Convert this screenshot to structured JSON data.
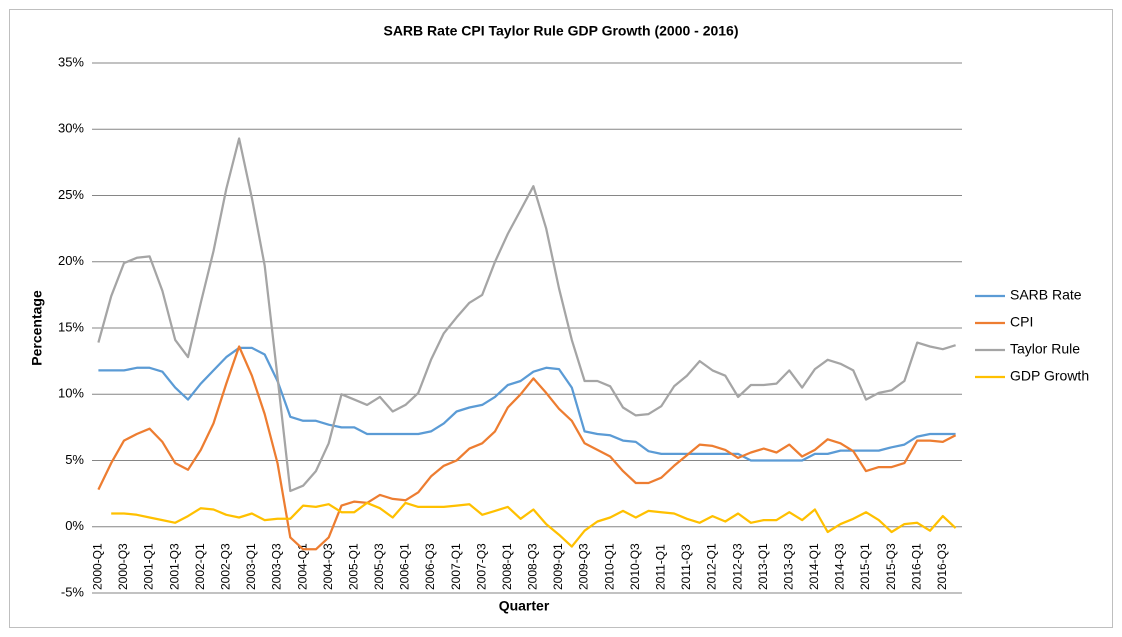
{
  "chart_data": {
    "type": "line",
    "title": "SARB Rate CPI Taylor Rule GDP Growth (2000 - 2016)",
    "x_label": "Quarter",
    "y_label": "Percentage",
    "categories": [
      "2000-Q1",
      null,
      "2000-Q3",
      null,
      "2001-Q1",
      null,
      "2001-Q3",
      null,
      "2002-Q1",
      null,
      "2002-Q3",
      null,
      "2003-Q1",
      null,
      "2003-Q3",
      null,
      "2004-Q1",
      null,
      "2004-Q3",
      null,
      "2005-Q1",
      null,
      "2005-Q3",
      null,
      "2006-Q1",
      null,
      "2006-Q3",
      null,
      "2007-Q1",
      null,
      "2007-Q3",
      null,
      "2008-Q1",
      null,
      "2008-Q3",
      null,
      "2009-Q1",
      null,
      "2009-Q3",
      null,
      "2010-Q1",
      null,
      "2010-Q3",
      null,
      "2011-Q1",
      null,
      "2011-Q3",
      null,
      "2012-Q1",
      null,
      "2012-Q3",
      null,
      "2013-Q1",
      null,
      "2013-Q3",
      null,
      "2014-Q1",
      null,
      "2014-Q3",
      null,
      "2015-Q1",
      null,
      "2015-Q3",
      null,
      "2016-Q1",
      null,
      "2016-Q3",
      null
    ],
    "series": [
      {
        "name": "SARB Rate",
        "color": "#5b9bd5",
        "values": [
          11.8,
          11.8,
          11.8,
          12,
          12,
          11.7,
          10.5,
          9.6,
          10.8,
          11.8,
          12.8,
          13.5,
          13.5,
          13,
          11,
          8.3,
          8,
          8,
          7.7,
          7.5,
          7.5,
          7,
          7,
          7,
          7,
          7,
          7.2,
          7.8,
          8.7,
          9,
          9.2,
          9.8,
          10.7,
          11,
          11.7,
          12,
          11.9,
          10.5,
          7.2,
          7,
          6.9,
          6.5,
          6.4,
          5.7,
          5.5,
          5.5,
          5.5,
          5.5,
          5.5,
          5.5,
          5.5,
          5,
          5,
          5,
          5,
          5,
          5.5,
          5.5,
          5.75,
          5.75,
          5.75,
          5.75,
          6,
          6.2,
          6.8,
          7,
          7,
          7
        ]
      },
      {
        "name": "CPI",
        "color": "#ed7d31",
        "values": [
          2.8,
          4.8,
          6.5,
          7,
          7.4,
          6.4,
          4.8,
          4.3,
          5.8,
          7.8,
          10.8,
          13.6,
          11.4,
          8.5,
          4.8,
          -0.8,
          -1.7,
          -1.7,
          -0.8,
          1.6,
          1.9,
          1.8,
          2.4,
          2.1,
          2,
          2.6,
          3.8,
          4.6,
          5,
          5.9,
          6.3,
          7.2,
          9,
          10,
          11.2,
          10.1,
          8.9,
          8,
          6.3,
          5.8,
          5.3,
          4.2,
          3.3,
          3.3,
          3.7,
          4.6,
          5.4,
          6.2,
          6.1,
          5.8,
          5.2,
          5.6,
          5.9,
          5.6,
          6.2,
          5.3,
          5.8,
          6.6,
          6.3,
          5.7,
          4.2,
          4.5,
          4.5,
          4.8,
          6.5,
          6.5,
          6.4,
          6.9
        ]
      },
      {
        "name": "Taylor Rule",
        "color": "#a5a5a5",
        "values": [
          13.9,
          17.4,
          19.9,
          20.3,
          20.4,
          17.8,
          14.1,
          12.8,
          16.9,
          20.8,
          25.5,
          29.3,
          24.8,
          19.7,
          11.3,
          2.7,
          3.1,
          4.2,
          6.3,
          10,
          9.6,
          9.2,
          9.8,
          8.7,
          9.2,
          10.1,
          12.6,
          14.6,
          15.8,
          16.9,
          17.5,
          20,
          22.1,
          23.9,
          25.7,
          22.5,
          18,
          14.1,
          11,
          11,
          10.6,
          9,
          8.4,
          8.5,
          9.1,
          10.6,
          11.4,
          12.5,
          11.8,
          11.4,
          9.8,
          10.7,
          10.7,
          10.8,
          11.8,
          10.5,
          11.9,
          12.6,
          12.3,
          11.8,
          9.6,
          10.1,
          10.3,
          11,
          13.9,
          13.6,
          13.4,
          13.7
        ]
      },
      {
        "name": "GDP Growth",
        "color": "#ffc000",
        "values": [
          null,
          1,
          1,
          0.9,
          0.7,
          0.5,
          0.3,
          0.8,
          1.4,
          1.3,
          0.9,
          0.7,
          1,
          0.5,
          0.6,
          0.6,
          1.6,
          1.5,
          1.7,
          1.1,
          1.1,
          1.8,
          1.4,
          0.7,
          1.8,
          1.5,
          1.5,
          1.5,
          1.6,
          1.7,
          0.9,
          1.2,
          1.5,
          0.6,
          1.3,
          0.2,
          -0.6,
          -1.5,
          -0.3,
          0.4,
          0.7,
          1.2,
          0.7,
          1.2,
          1.1,
          1,
          0.6,
          0.3,
          0.8,
          0.4,
          1,
          0.3,
          0.5,
          0.5,
          1.1,
          0.5,
          1.3,
          -0.4,
          0.2,
          0.6,
          1.1,
          0.5,
          -0.4,
          0.2,
          0.3,
          -0.3,
          0.8,
          -0.1
        ]
      }
    ],
    "ylim": [
      -5,
      35
    ],
    "yticks": [
      {
        "value": -5,
        "label": "-5%"
      },
      {
        "value": 0,
        "label": "0%"
      },
      {
        "value": 5,
        "label": "5%"
      },
      {
        "value": 10,
        "label": "10%"
      },
      {
        "value": 15,
        "label": "15%"
      },
      {
        "value": 20,
        "label": "20%"
      },
      {
        "value": 25,
        "label": "25%"
      },
      {
        "value": 30,
        "label": "30%"
      },
      {
        "value": 35,
        "label": "35%"
      }
    ],
    "grid": true,
    "legend": "right"
  }
}
